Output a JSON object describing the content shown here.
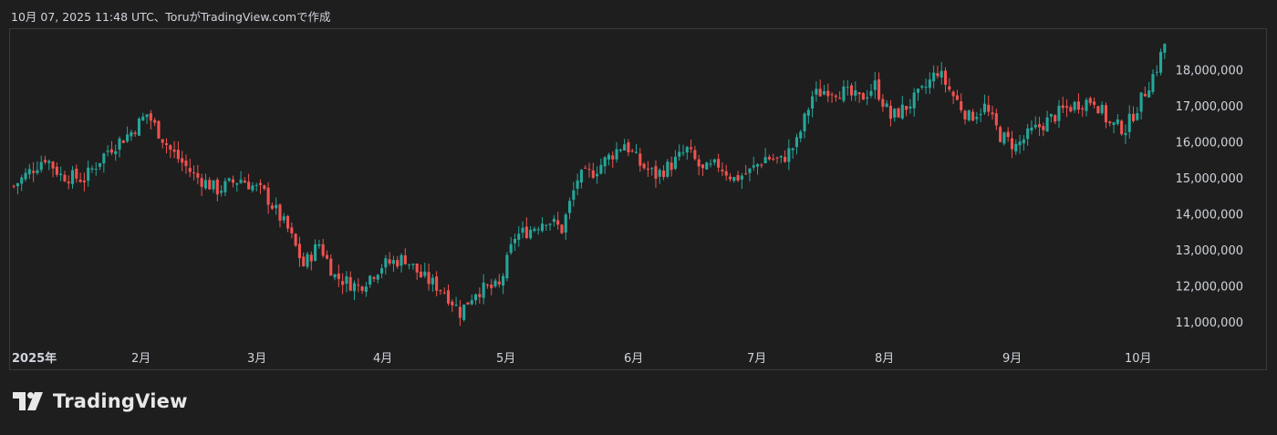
{
  "header": {
    "attribution": "10月 07, 2025 11:48 UTC、ToruがTradingView.comで作成"
  },
  "brand": {
    "logo_text": "TradingView"
  },
  "colors": {
    "background": "#1e1e1e",
    "up": "#26a69a",
    "down": "#ef5350",
    "text": "#d1d4dc",
    "border": "#3a3a3a"
  },
  "chart_data": {
    "type": "candlestick",
    "ylim": [
      10500000,
      19000000
    ],
    "y_ticks": [
      11000000,
      12000000,
      13000000,
      14000000,
      15000000,
      16000000,
      17000000,
      18000000
    ],
    "y_tick_labels": [
      "11,000,000",
      "12,000,000",
      "13,000,000",
      "14,000,000",
      "15,000,000",
      "16,000,000",
      "17,000,000",
      "18,000,000"
    ],
    "x_tick_labels": [
      "2025年",
      "2月",
      "3月",
      "4月",
      "5月",
      "6月",
      "7月",
      "8月",
      "9月",
      "10月"
    ],
    "grid": false,
    "monthly_closes": [
      {
        "label": "2025年",
        "value": 15100000
      },
      {
        "label": "2月",
        "value": 16200000
      },
      {
        "label": "3月",
        "value": 13400000
      },
      {
        "label": "4月",
        "value": 12300000
      },
      {
        "label": "5月",
        "value": 14300000
      },
      {
        "label": "6月",
        "value": 15100000
      },
      {
        "label": "7月",
        "value": 15600000
      },
      {
        "label": "8月",
        "value": 17300000
      },
      {
        "label": "9月",
        "value": 16100000
      },
      {
        "label": "10月",
        "value": 17400000
      }
    ],
    "last_close": 18750000
  }
}
